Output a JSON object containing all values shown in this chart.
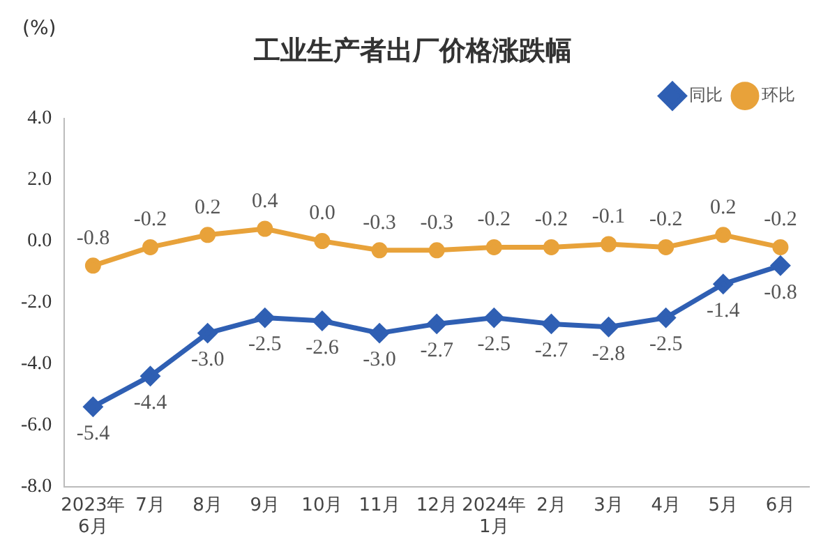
{
  "chart_data": {
    "type": "line",
    "title": "工业生产者出厂价格涨跌幅",
    "ylabel": "(%)",
    "categories": [
      "2023年\n6月",
      "7月",
      "8月",
      "9月",
      "10月",
      "11月",
      "12月",
      "2024年\n1月",
      "2月",
      "3月",
      "4月",
      "5月",
      "6月"
    ],
    "series": [
      {
        "name": "同比",
        "color": "#2f5fb3",
        "marker": "diamond",
        "values": [
          -5.4,
          -4.4,
          -3.0,
          -2.5,
          -2.6,
          -3.0,
          -2.7,
          -2.5,
          -2.7,
          -2.8,
          -2.5,
          -1.4,
          -0.8
        ],
        "value_labels": [
          "-5.4",
          "-4.4",
          "-3.0",
          "-2.5",
          "-2.6",
          "-3.0",
          "-2.7",
          "-2.5",
          "-2.7",
          "-2.8",
          "-2.5",
          "-1.4",
          "-0.8"
        ]
      },
      {
        "name": "环比",
        "color": "#e8a23a",
        "marker": "circle",
        "values": [
          -0.8,
          -0.2,
          0.2,
          0.4,
          0.0,
          -0.3,
          -0.3,
          -0.2,
          -0.2,
          -0.1,
          -0.2,
          0.2,
          -0.2
        ],
        "value_labels": [
          "-0.8",
          "-0.2",
          "0.2",
          "0.4",
          "0.0",
          "-0.3",
          "-0.3",
          "-0.2",
          "-0.2",
          "-0.1",
          "-0.2",
          "0.2",
          "-0.2"
        ]
      }
    ],
    "ylim": [
      -8,
      4
    ],
    "yticks": [
      {
        "value": -8,
        "label": "-8.0"
      },
      {
        "value": -6,
        "label": "-6.0"
      },
      {
        "value": -4,
        "label": "-4.0"
      },
      {
        "value": -2,
        "label": "-2.0"
      },
      {
        "value": 0,
        "label": "0.0"
      },
      {
        "value": 2,
        "label": "2.0"
      },
      {
        "value": 4,
        "label": "4.0"
      }
    ],
    "grid": false,
    "legend": "top right",
    "line_style": "solid"
  }
}
